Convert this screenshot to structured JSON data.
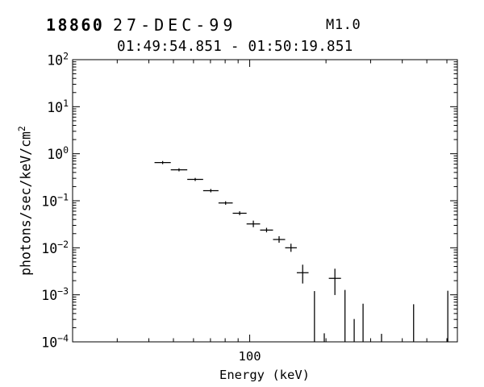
{
  "chart_data": {
    "type": "scatter",
    "title": {
      "flare_number": "18860",
      "date": "27-DEC-99",
      "goes_class": "M1.0",
      "time_range": "01:49:54.851 - 01:50:19.851"
    },
    "xlabel": "Energy (keV)",
    "ylabel": {
      "base": "photons/sec/keV/cm",
      "exponent": "2"
    },
    "x_scale": "log",
    "y_scale": "log",
    "grid": false,
    "legend": false,
    "xlim": [
      20,
      660
    ],
    "ylim": [
      0.0001,
      100
    ],
    "x_tick_labels": [
      {
        "value": 100,
        "label": "100"
      }
    ],
    "y_tick_exponents": [
      2,
      1,
      0,
      -1,
      -2,
      -3,
      -4
    ],
    "series": [
      {
        "name": "photon-spectrum",
        "marker": "cross-error-bars",
        "points": [
          {
            "e_lo": 42.1,
            "e_hi": 48.8,
            "flux": 0.648,
            "flux_lo": 0.601,
            "flux_hi": 0.699
          },
          {
            "e_lo": 48.8,
            "e_hi": 56.7,
            "flux": 0.455,
            "flux_lo": 0.422,
            "flux_hi": 0.491
          },
          {
            "e_lo": 56.7,
            "e_hi": 65.5,
            "flux": 0.284,
            "flux_lo": 0.263,
            "flux_hi": 0.306
          },
          {
            "e_lo": 65.5,
            "e_hi": 75.3,
            "flux": 0.164,
            "flux_lo": 0.151,
            "flux_hi": 0.178
          },
          {
            "e_lo": 75.3,
            "e_hi": 85.7,
            "flux": 0.0896,
            "flux_lo": 0.0823,
            "flux_hi": 0.0975
          },
          {
            "e_lo": 85.7,
            "e_hi": 97.2,
            "flux": 0.0543,
            "flux_lo": 0.0494,
            "flux_hi": 0.0597
          },
          {
            "e_lo": 97.2,
            "e_hi": 109.9,
            "flux": 0.0322,
            "flux_lo": 0.0274,
            "flux_hi": 0.0378
          },
          {
            "e_lo": 109.9,
            "e_hi": 123.6,
            "flux": 0.0238,
            "flux_lo": 0.0213,
            "flux_hi": 0.0266
          },
          {
            "e_lo": 123.6,
            "e_hi": 138.0,
            "flux": 0.015,
            "flux_lo": 0.0128,
            "flux_hi": 0.0176
          },
          {
            "e_lo": 138.0,
            "e_hi": 153.4,
            "flux": 0.01,
            "flux_lo": 0.0082,
            "flux_hi": 0.0122
          },
          {
            "e_lo": 153.4,
            "e_hi": 170.7,
            "flux": 0.00295,
            "flux_lo": 0.00174,
            "flux_hi": 0.00437
          },
          {
            "e_lo": 205.2,
            "e_hi": 229.2,
            "flux": 0.00224,
            "flux_lo": 0.00099,
            "flux_hi": 0.00359
          }
        ]
      },
      {
        "name": "upper-limit-spikes",
        "marker": "vertical-line-from-axis",
        "spikes": [
          {
            "energy": 180.1,
            "flux_top": 0.0012
          },
          {
            "energy": 196.9,
            "flux_top": 0.000152
          },
          {
            "energy": 237.7,
            "flux_top": 0.00127
          },
          {
            "energy": 258.4,
            "flux_top": 0.000306
          },
          {
            "energy": 280.1,
            "flux_top": 0.000647
          },
          {
            "energy": 331.3,
            "flux_top": 0.000148
          },
          {
            "energy": 443.4,
            "flux_top": 0.00063
          },
          {
            "energy": 605.0,
            "flux_top": 0.00122
          }
        ]
      }
    ]
  }
}
